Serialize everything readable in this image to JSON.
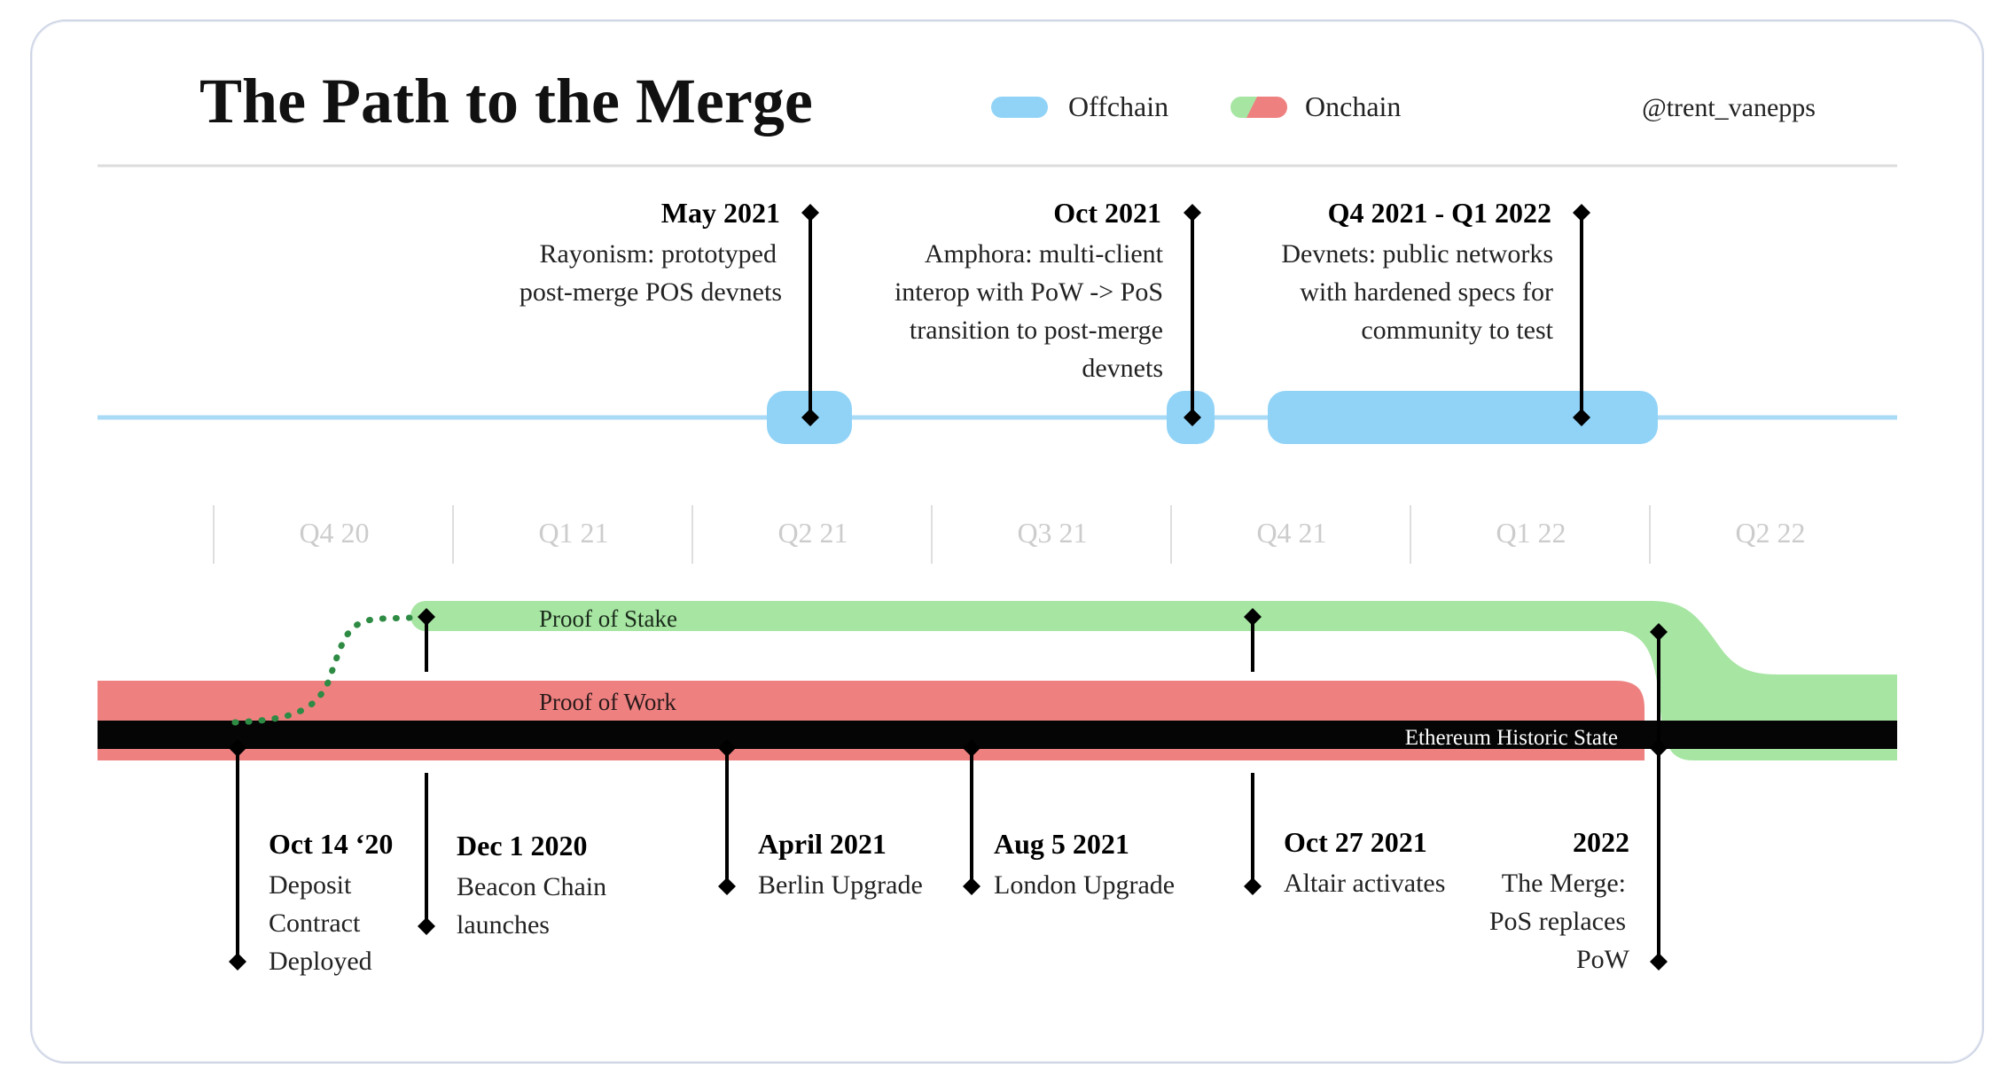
{
  "title": "The Path to the Merge",
  "legend": [
    {
      "label": "Offchain",
      "color": "#91d3f7"
    },
    {
      "label": "Onchain",
      "colors": [
        "#a7e5a3",
        "#ee8080"
      ]
    }
  ],
  "author": "@trent_vanepps",
  "colors": {
    "offchain": "#91d3f7",
    "offchain_line": "#a9daf6",
    "pos": "#a7e5a3",
    "pow": "#ee8080",
    "state": "#050505",
    "quarter_text": "#cccccc",
    "dotted": "#2e8b44"
  },
  "quarters": [
    "Q4 20",
    "Q1 21",
    "Q2 21",
    "Q3 21",
    "Q4 21",
    "Q1 22",
    "Q2 22"
  ],
  "offchain_events": [
    {
      "date": "May 2021",
      "lines": [
        "Rayonism: prototyped",
        "post-merge POS devnets"
      ]
    },
    {
      "date": "Oct 2021",
      "lines": [
        "Amphora: multi-client",
        "interop with PoW -> PoS",
        "transition to post-merge",
        "devnets"
      ]
    },
    {
      "date": "Q4 2021 - Q1 2022",
      "lines": [
        "Devnets: public networks",
        "with hardened specs for",
        "community to test"
      ]
    }
  ],
  "tracks": {
    "pos": "Proof of Stake",
    "pow": "Proof of Work",
    "state": "Ethereum Historic State"
  },
  "onchain_events": [
    {
      "date": "Oct 14 ‘20",
      "lines": [
        "Deposit",
        "Contract",
        "Deployed"
      ]
    },
    {
      "date": "Dec 1 2020",
      "lines": [
        "Beacon Chain",
        "launches"
      ]
    },
    {
      "date": "April 2021",
      "lines": [
        "Berlin Upgrade"
      ]
    },
    {
      "date": "Aug 5 2021",
      "lines": [
        "London Upgrade"
      ]
    },
    {
      "date": "Oct 27 2021",
      "lines": [
        "Altair activates"
      ]
    },
    {
      "date": "2022",
      "lines": [
        "The Merge:",
        "PoS replaces",
        "PoW"
      ]
    }
  ]
}
